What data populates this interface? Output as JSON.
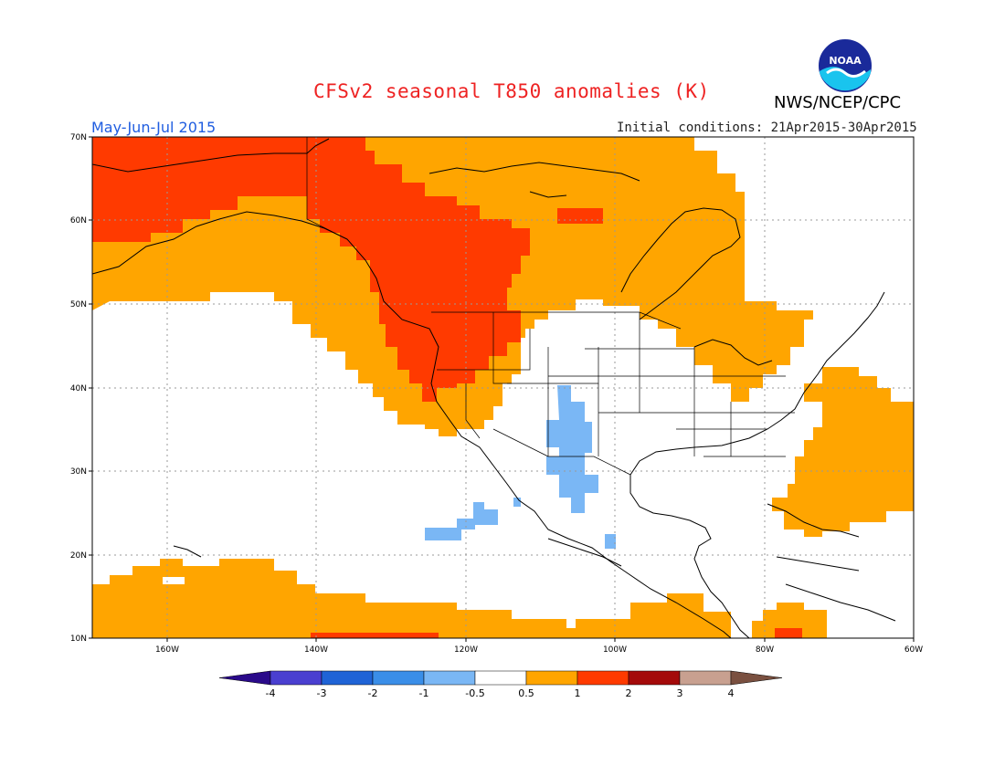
{
  "header": {
    "title": "CFSv2 seasonal T850 anomalies (K)",
    "agency": "NWS/NCEP/CPC",
    "logo_text": "NOAA",
    "season": "May-Jun-Jul 2015",
    "initial_conditions": "Initial conditions: 21Apr2015-30Apr2015"
  },
  "map": {
    "lat_labels": [
      "70N",
      "60N",
      "50N",
      "40N",
      "30N",
      "20N",
      "10N"
    ],
    "lon_labels": [
      "160W",
      "140W",
      "120W",
      "100W",
      "80W",
      "60W"
    ]
  },
  "legend": {
    "tick_labels": [
      "-4",
      "-3",
      "-2",
      "-1",
      "-0.5",
      "0.5",
      "1",
      "2",
      "3",
      "4"
    ],
    "colors": [
      "#2a0a8a",
      "#4a3fd0",
      "#1f63d6",
      "#3a8ee8",
      "#7ab7f5",
      "#ffffff",
      "#ffa500",
      "#ff3a00",
      "#a40a0a",
      "#c8a090",
      "#7a5040"
    ]
  },
  "colors": {
    "warm1": "#ffa500",
    "warm2": "#ff3a00",
    "cool1": "#7ab7f5",
    "title": "#ee2222",
    "season": "#1f5de0"
  }
}
